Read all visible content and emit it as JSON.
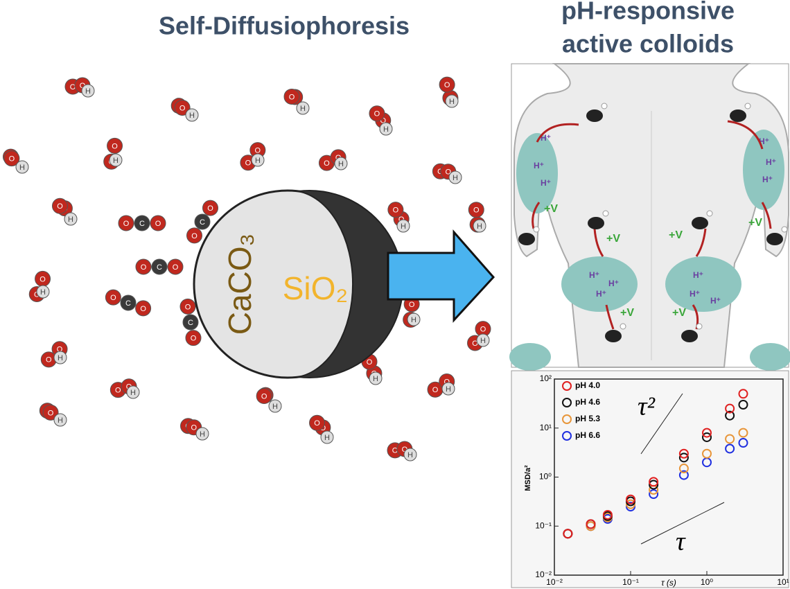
{
  "left_title": "Self-Diffusiophoresis",
  "right_title_lines": [
    "pH-responsive",
    "active colloids"
  ],
  "particle": {
    "cap_label": "CaCO₃",
    "core_label": "SiO₂"
  },
  "molecule_letters": {
    "oxygen": "O",
    "hydrogen": "H",
    "carbon": "C"
  },
  "body": {
    "proton_label": "H⁺",
    "velocity_label": "+V"
  },
  "plot": {
    "x_label": "τ (s)",
    "y_label": "MSD/a²",
    "slope_labels": [
      "τ²",
      "τ"
    ],
    "log_x": true,
    "log_y": true,
    "xlim": [
      0.01,
      10
    ],
    "ylim": [
      0.01,
      100
    ],
    "xticks": [
      {
        "value": 0.01,
        "label": "10⁻²"
      },
      {
        "value": 0.1,
        "label": "10⁻¹"
      },
      {
        "value": 1,
        "label": "10⁰"
      },
      {
        "value": 10,
        "label": "10¹"
      }
    ],
    "yticks": [
      {
        "value": 0.01,
        "label": "10⁻²"
      },
      {
        "value": 0.1,
        "label": "10⁻¹"
      },
      {
        "value": 1,
        "label": "10⁰"
      },
      {
        "value": 10,
        "label": "10¹"
      },
      {
        "value": 100,
        "label": "10²"
      }
    ],
    "series": [
      {
        "name": "pH 4.0",
        "color": "#e02020",
        "x": [
          0.015,
          0.03,
          0.05,
          0.1,
          0.2,
          0.5,
          1,
          2,
          3
        ],
        "y": [
          0.07,
          0.11,
          0.17,
          0.35,
          0.8,
          3,
          8,
          25,
          50
        ]
      },
      {
        "name": "pH 4.6",
        "color": "#111111",
        "x": [
          0.015,
          0.03,
          0.05,
          0.1,
          0.2,
          0.5,
          1,
          2,
          3
        ],
        "y": [
          0.07,
          0.11,
          0.16,
          0.32,
          0.7,
          2.5,
          6.5,
          18,
          30
        ]
      },
      {
        "name": "pH 5.3",
        "color": "#e8963a",
        "x": [
          0.015,
          0.03,
          0.05,
          0.1,
          0.2,
          0.5,
          1,
          2,
          3
        ],
        "y": [
          0.07,
          0.1,
          0.15,
          0.28,
          0.55,
          1.5,
          3,
          6,
          8
        ]
      },
      {
        "name": "pH 6.6",
        "color": "#2030e0",
        "x": [
          0.015,
          0.03,
          0.05,
          0.1,
          0.2,
          0.5,
          1,
          2,
          3
        ],
        "y": [
          0.07,
          0.1,
          0.14,
          0.25,
          0.45,
          1.1,
          2,
          3.8,
          5
        ]
      }
    ]
  }
}
